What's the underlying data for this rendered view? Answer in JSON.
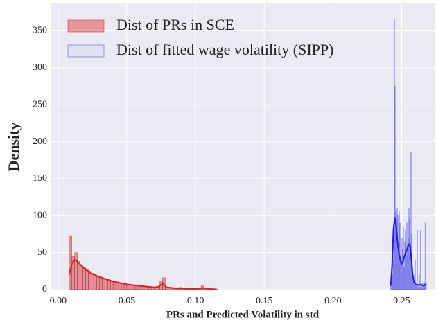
{
  "chart_data": {
    "type": "histogram",
    "xlabel": "PRs and Predicted Volatility in std",
    "ylabel": "Density",
    "xlim": [
      -0.005,
      0.274
    ],
    "ylim": [
      0,
      387
    ],
    "xticks": [
      {
        "value": 0,
        "label": "0.00"
      },
      {
        "value": 0.05,
        "label": "0.05"
      },
      {
        "value": 0.1,
        "label": "0.10"
      },
      {
        "value": 0.15,
        "label": "0.15"
      },
      {
        "value": 0.2,
        "label": "0.20"
      },
      {
        "value": 0.25,
        "label": "0.25"
      }
    ],
    "yticks": [
      0,
      50,
      100,
      150,
      200,
      250,
      300,
      350
    ],
    "grid": true,
    "legend": "upper left",
    "series": [
      {
        "name": "Dist of PRs in SCE",
        "color": "#e41a1c",
        "bins": [
          0.008,
          0.01,
          0.012,
          0.014,
          0.016,
          0.018,
          0.02,
          0.022,
          0.024,
          0.026,
          0.028,
          0.03,
          0.032,
          0.034,
          0.036,
          0.038,
          0.04,
          0.042,
          0.044,
          0.046,
          0.048,
          0.05,
          0.052,
          0.054,
          0.056,
          0.058,
          0.06,
          0.062,
          0.064,
          0.066,
          0.068,
          0.07,
          0.072,
          0.074,
          0.076,
          0.078,
          0.08,
          0.082,
          0.084,
          0.086,
          0.088,
          0.09,
          0.092,
          0.094,
          0.096,
          0.098,
          0.1,
          0.102,
          0.104,
          0.106,
          0.108,
          0.11,
          0.112,
          0.114,
          0.116
        ],
        "values": [
          73,
          45,
          50,
          38,
          33,
          30,
          28,
          25,
          22,
          20,
          18,
          17,
          15,
          14,
          13,
          12,
          11,
          10,
          9,
          9,
          8,
          7,
          7,
          6,
          6,
          5,
          5,
          4,
          4,
          3,
          3,
          3,
          4,
          12,
          16,
          3,
          2,
          2,
          2,
          2,
          3,
          1,
          1,
          1,
          1,
          1,
          1,
          1,
          5,
          1,
          1,
          1,
          0,
          1
        ],
        "kde": {
          "x": [
            0.008,
            0.01,
            0.012,
            0.014,
            0.016,
            0.02,
            0.025,
            0.03,
            0.035,
            0.04,
            0.045,
            0.05,
            0.055,
            0.06,
            0.065,
            0.07,
            0.073,
            0.076,
            0.079,
            0.085,
            0.09,
            0.1,
            0.104,
            0.106,
            0.11,
            0.115
          ],
          "y": [
            20,
            35,
            40,
            38,
            34,
            27,
            21,
            17,
            14,
            11,
            9,
            7,
            6,
            5,
            4,
            3,
            4,
            8,
            3,
            2,
            1.5,
            1,
            2,
            2,
            1,
            0.5
          ]
        }
      },
      {
        "name": "Dist of fitted wage volatility (SIPP)",
        "color": "#1f1fe0",
        "bins": [
          0.242,
          0.2425,
          0.243,
          0.2435,
          0.244,
          0.2445,
          0.245,
          0.2455,
          0.246,
          0.2465,
          0.247,
          0.2475,
          0.248,
          0.2485,
          0.249,
          0.2495,
          0.25,
          0.2505,
          0.251,
          0.2515,
          0.252,
          0.2525,
          0.253,
          0.2535,
          0.254,
          0.2545,
          0.255,
          0.2555,
          0.256,
          0.2565,
          0.257,
          0.2575,
          0.258,
          0.2585,
          0.259,
          0.2595,
          0.26,
          0.2605,
          0.261,
          0.2615,
          0.262,
          0.2625,
          0.263,
          0.2635,
          0.264,
          0.2645,
          0.265,
          0.2655,
          0.266,
          0.2665,
          0.267,
          0.2675,
          0.268
        ],
        "values": [
          5,
          10,
          20,
          40,
          60,
          365,
          275,
          105,
          95,
          110,
          100,
          60,
          105,
          90,
          45,
          40,
          70,
          55,
          85,
          30,
          65,
          80,
          45,
          90,
          60,
          70,
          110,
          95,
          60,
          185,
          75,
          30,
          10,
          20,
          5,
          40,
          10,
          5,
          80,
          3,
          5,
          20,
          3,
          80,
          5,
          3,
          8,
          3,
          10,
          5,
          90,
          5
        ],
        "kde": {
          "x": [
            0.242,
            0.243,
            0.244,
            0.245,
            0.246,
            0.247,
            0.248,
            0.249,
            0.25,
            0.251,
            0.252,
            0.253,
            0.254,
            0.255,
            0.256,
            0.257,
            0.258,
            0.259,
            0.26,
            0.262,
            0.264,
            0.266,
            0.268
          ],
          "y": [
            5,
            30,
            80,
            98,
            85,
            65,
            50,
            40,
            35,
            38,
            45,
            50,
            55,
            60,
            62,
            45,
            20,
            10,
            7,
            6,
            7,
            5,
            8
          ]
        }
      }
    ]
  }
}
